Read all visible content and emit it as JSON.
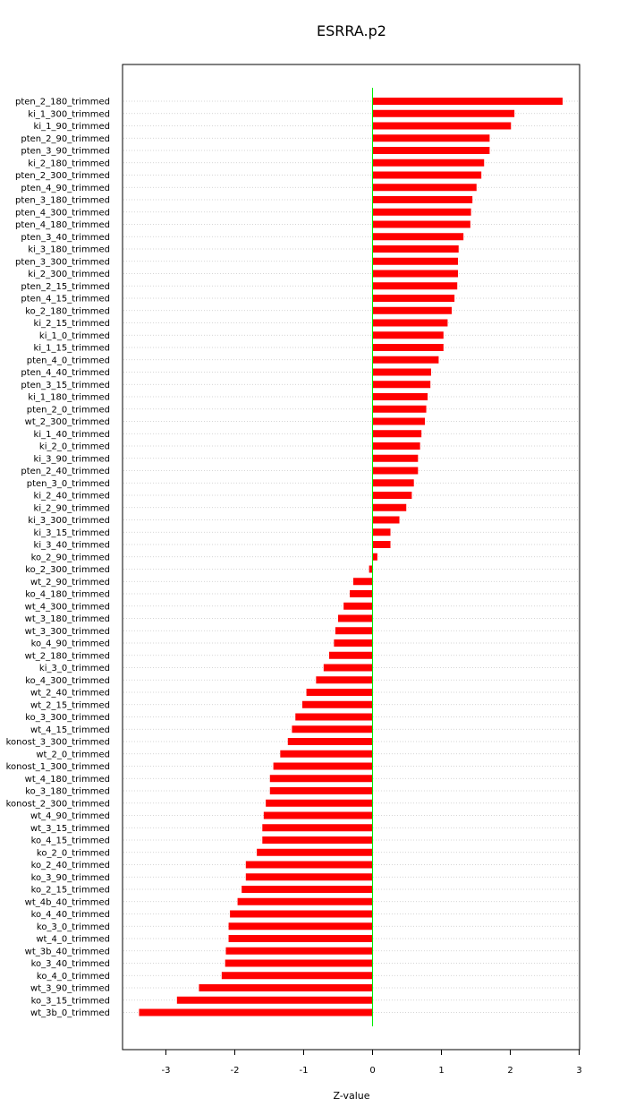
{
  "chart_data": {
    "type": "bar",
    "orientation": "horizontal",
    "title": "ESRRA.p2",
    "xlabel": "Z-value",
    "ylabel": "",
    "xlim": [
      -3.6,
      3.0
    ],
    "xticks": [
      "-3",
      "-2",
      "-1",
      "0",
      "1",
      "2",
      "3"
    ],
    "grid": true,
    "bar_color": "#ff0000",
    "reference_line_color": "#00ee00",
    "categories": [
      "pten_2_180_trimmed",
      "ki_1_300_trimmed",
      "ki_1_90_trimmed",
      "pten_2_90_trimmed",
      "pten_3_90_trimmed",
      "ki_2_180_trimmed",
      "pten_2_300_trimmed",
      "pten_4_90_trimmed",
      "pten_3_180_trimmed",
      "pten_4_300_trimmed",
      "pten_4_180_trimmed",
      "pten_3_40_trimmed",
      "ki_3_180_trimmed",
      "pten_3_300_trimmed",
      "ki_2_300_trimmed",
      "pten_2_15_trimmed",
      "pten_4_15_trimmed",
      "ko_2_180_trimmed",
      "ki_2_15_trimmed",
      "ki_1_0_trimmed",
      "ki_1_15_trimmed",
      "pten_4_0_trimmed",
      "pten_4_40_trimmed",
      "pten_3_15_trimmed",
      "ki_1_180_trimmed",
      "pten_2_0_trimmed",
      "wt_2_300_trimmed",
      "ki_1_40_trimmed",
      "ki_2_0_trimmed",
      "ki_3_90_trimmed",
      "pten_2_40_trimmed",
      "pten_3_0_trimmed",
      "ki_2_40_trimmed",
      "ki_2_90_trimmed",
      "ki_3_300_trimmed",
      "ki_3_15_trimmed",
      "ki_3_40_trimmed",
      "ko_2_90_trimmed",
      "ko_2_300_trimmed",
      "wt_2_90_trimmed",
      "ko_4_180_trimmed",
      "wt_4_300_trimmed",
      "wt_3_180_trimmed",
      "wt_3_300_trimmed",
      "ko_4_90_trimmed",
      "wt_2_180_trimmed",
      "ki_3_0_trimmed",
      "ko_4_300_trimmed",
      "wt_2_40_trimmed",
      "wt_2_15_trimmed",
      "ko_3_300_trimmed",
      "wt_4_15_trimmed",
      "konost_3_300_trimmed",
      "wt_2_0_trimmed",
      "konost_1_300_trimmed",
      "wt_4_180_trimmed",
      "ko_3_180_trimmed",
      "konost_2_300_trimmed",
      "wt_4_90_trimmed",
      "wt_3_15_trimmed",
      "ko_4_15_trimmed",
      "ko_2_0_trimmed",
      "ko_2_40_trimmed",
      "ko_3_90_trimmed",
      "ko_2_15_trimmed",
      "wt_4b_40_trimmed",
      "ko_4_40_trimmed",
      "ko_3_0_trimmed",
      "wt_4_0_trimmed",
      "wt_3b_40_trimmed",
      "ko_3_40_trimmed",
      "ko_4_0_trimmed",
      "wt_3_90_trimmed",
      "ko_3_15_trimmed",
      "wt_3b_0_trimmed"
    ],
    "values": [
      2.76,
      2.06,
      2.01,
      1.7,
      1.7,
      1.62,
      1.58,
      1.51,
      1.45,
      1.43,
      1.42,
      1.32,
      1.25,
      1.24,
      1.24,
      1.23,
      1.19,
      1.15,
      1.09,
      1.03,
      1.03,
      0.96,
      0.85,
      0.84,
      0.8,
      0.78,
      0.76,
      0.71,
      0.69,
      0.66,
      0.66,
      0.6,
      0.57,
      0.49,
      0.39,
      0.26,
      0.26,
      0.07,
      -0.05,
      -0.28,
      -0.33,
      -0.42,
      -0.5,
      -0.54,
      -0.56,
      -0.63,
      -0.71,
      -0.82,
      -0.96,
      -1.02,
      -1.12,
      -1.17,
      -1.23,
      -1.34,
      -1.44,
      -1.49,
      -1.49,
      -1.55,
      -1.58,
      -1.6,
      -1.6,
      -1.68,
      -1.84,
      -1.84,
      -1.9,
      -1.96,
      -2.07,
      -2.09,
      -2.09,
      -2.13,
      -2.14,
      -2.19,
      -2.52,
      -2.84,
      -3.39
    ]
  }
}
